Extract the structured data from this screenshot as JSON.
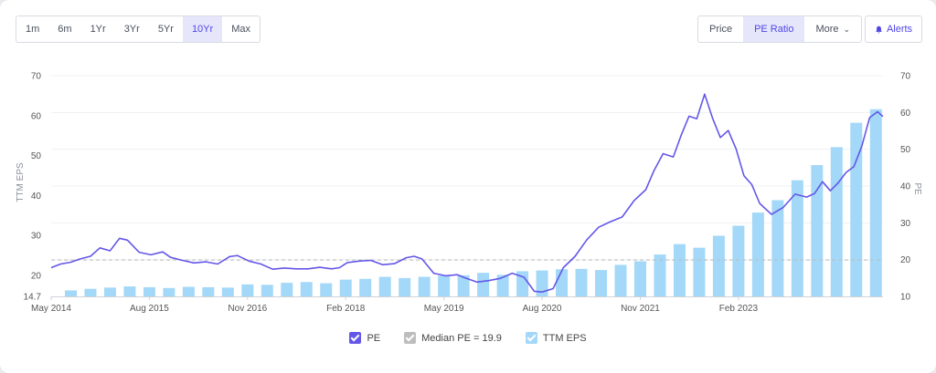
{
  "range_tabs": [
    "1m",
    "6m",
    "1Yr",
    "3Yr",
    "5Yr",
    "10Yr",
    "Max"
  ],
  "active_range": "10Yr",
  "mode_tabs": {
    "price": "Price",
    "pe_ratio": "PE Ratio",
    "more": "More"
  },
  "active_mode": "PE Ratio",
  "alerts_label": "Alerts",
  "legend": {
    "pe": "PE",
    "median": "Median PE = 19.9",
    "eps": "TTM EPS"
  },
  "colors": {
    "pe_line": "#6457e8",
    "median_line": "#bdbdbd",
    "eps_bar": "#a3d8f8",
    "accent": "#4f46e5"
  },
  "chart_data": {
    "type": "bar",
    "xlabel": "",
    "ylabel_left": "TTM EPS",
    "ylabel_right": "PE",
    "x_tick_labels": [
      "May 2014",
      "Aug 2015",
      "Nov 2016",
      "Feb 2018",
      "May 2019",
      "Aug 2020",
      "Nov 2021",
      "Feb 2023"
    ],
    "x_range": [
      2014.33,
      2024.92
    ],
    "left_axis": {
      "ticks": [
        "14.7",
        "20",
        "30",
        "40",
        "50",
        "60",
        "70"
      ],
      "ylim": [
        14.7,
        70
      ]
    },
    "right_axis": {
      "ticks": [
        "10",
        "20",
        "30",
        "40",
        "50",
        "60",
        "70"
      ],
      "ylim": [
        10,
        70
      ]
    },
    "median_pe": 19.9,
    "grid": true,
    "legend_position": "bottom",
    "series": [
      {
        "name": "TTM EPS",
        "type": "bar",
        "points": [
          [
            2014.58,
            16.2
          ],
          [
            2014.83,
            16.6
          ],
          [
            2015.08,
            16.9
          ],
          [
            2015.33,
            17.2
          ],
          [
            2015.58,
            17.0
          ],
          [
            2015.83,
            16.8
          ],
          [
            2016.08,
            17.1
          ],
          [
            2016.33,
            17.0
          ],
          [
            2016.58,
            16.9
          ],
          [
            2016.83,
            17.7
          ],
          [
            2017.08,
            17.6
          ],
          [
            2017.33,
            18.1
          ],
          [
            2017.58,
            18.3
          ],
          [
            2017.83,
            18.0
          ],
          [
            2018.08,
            18.9
          ],
          [
            2018.33,
            19.1
          ],
          [
            2018.58,
            19.6
          ],
          [
            2018.83,
            19.3
          ],
          [
            2019.08,
            19.6
          ],
          [
            2019.33,
            19.9
          ],
          [
            2019.58,
            20.0
          ],
          [
            2019.83,
            20.6
          ],
          [
            2020.08,
            20.1
          ],
          [
            2020.33,
            21.0
          ],
          [
            2020.58,
            21.2
          ],
          [
            2020.83,
            21.5
          ],
          [
            2021.08,
            21.6
          ],
          [
            2021.33,
            21.3
          ],
          [
            2021.58,
            22.6
          ],
          [
            2021.83,
            23.5
          ],
          [
            2022.08,
            25.2
          ],
          [
            2022.33,
            27.8
          ],
          [
            2022.58,
            26.9
          ],
          [
            2022.83,
            29.9
          ],
          [
            2023.08,
            32.4
          ],
          [
            2023.33,
            35.7
          ],
          [
            2023.58,
            38.8
          ],
          [
            2023.83,
            43.8
          ],
          [
            2024.08,
            47.6
          ],
          [
            2024.33,
            52.1
          ],
          [
            2024.58,
            58.2
          ],
          [
            2024.83,
            61.6
          ]
        ]
      },
      {
        "name": "PE",
        "type": "line",
        "points": [
          [
            2014.33,
            17.8
          ],
          [
            2014.45,
            18.8
          ],
          [
            2014.58,
            19.3
          ],
          [
            2014.7,
            20.2
          ],
          [
            2014.83,
            20.9
          ],
          [
            2014.95,
            23.2
          ],
          [
            2015.08,
            22.4
          ],
          [
            2015.2,
            25.8
          ],
          [
            2015.3,
            25.3
          ],
          [
            2015.45,
            22.0
          ],
          [
            2015.6,
            21.3
          ],
          [
            2015.75,
            22.1
          ],
          [
            2015.85,
            20.6
          ],
          [
            2016.0,
            19.8
          ],
          [
            2016.15,
            19.1
          ],
          [
            2016.3,
            19.4
          ],
          [
            2016.45,
            18.8
          ],
          [
            2016.6,
            20.8
          ],
          [
            2016.7,
            21.1
          ],
          [
            2016.85,
            19.6
          ],
          [
            2017.0,
            18.8
          ],
          [
            2017.15,
            17.4
          ],
          [
            2017.3,
            17.7
          ],
          [
            2017.45,
            17.5
          ],
          [
            2017.6,
            17.5
          ],
          [
            2017.75,
            17.9
          ],
          [
            2017.9,
            17.5
          ],
          [
            2018.0,
            17.8
          ],
          [
            2018.1,
            19.2
          ],
          [
            2018.25,
            19.6
          ],
          [
            2018.4,
            19.8
          ],
          [
            2018.55,
            18.6
          ],
          [
            2018.7,
            18.9
          ],
          [
            2018.85,
            20.5
          ],
          [
            2018.95,
            20.9
          ],
          [
            2019.05,
            20.2
          ],
          [
            2019.2,
            16.3
          ],
          [
            2019.35,
            15.6
          ],
          [
            2019.5,
            15.9
          ],
          [
            2019.6,
            15.0
          ],
          [
            2019.75,
            13.9
          ],
          [
            2019.9,
            14.3
          ],
          [
            2020.05,
            14.9
          ],
          [
            2020.2,
            16.3
          ],
          [
            2020.35,
            15.2
          ],
          [
            2020.48,
            11.4
          ],
          [
            2020.58,
            11.2
          ],
          [
            2020.72,
            12.1
          ],
          [
            2020.85,
            17.8
          ],
          [
            2021.0,
            20.9
          ],
          [
            2021.15,
            25.4
          ],
          [
            2021.3,
            28.8
          ],
          [
            2021.45,
            30.3
          ],
          [
            2021.6,
            31.6
          ],
          [
            2021.75,
            36.0
          ],
          [
            2021.9,
            39.0
          ],
          [
            2022.0,
            44.0
          ],
          [
            2022.12,
            48.8
          ],
          [
            2022.25,
            47.9
          ],
          [
            2022.35,
            53.8
          ],
          [
            2022.45,
            59.0
          ],
          [
            2022.55,
            58.3
          ],
          [
            2022.65,
            65.0
          ],
          [
            2022.75,
            58.5
          ],
          [
            2022.85,
            53.2
          ],
          [
            2022.95,
            55.1
          ],
          [
            2023.05,
            50.1
          ],
          [
            2023.15,
            42.8
          ],
          [
            2023.25,
            40.4
          ],
          [
            2023.35,
            35.3
          ],
          [
            2023.5,
            32.3
          ],
          [
            2023.65,
            34.2
          ],
          [
            2023.8,
            37.8
          ],
          [
            2023.95,
            37.0
          ],
          [
            2024.05,
            38.0
          ],
          [
            2024.15,
            41.2
          ],
          [
            2024.25,
            38.7
          ],
          [
            2024.35,
            40.9
          ],
          [
            2024.45,
            43.7
          ],
          [
            2024.55,
            45.3
          ],
          [
            2024.65,
            50.8
          ],
          [
            2024.75,
            58.6
          ],
          [
            2024.85,
            60.2
          ],
          [
            2024.92,
            58.9
          ]
        ]
      }
    ]
  }
}
